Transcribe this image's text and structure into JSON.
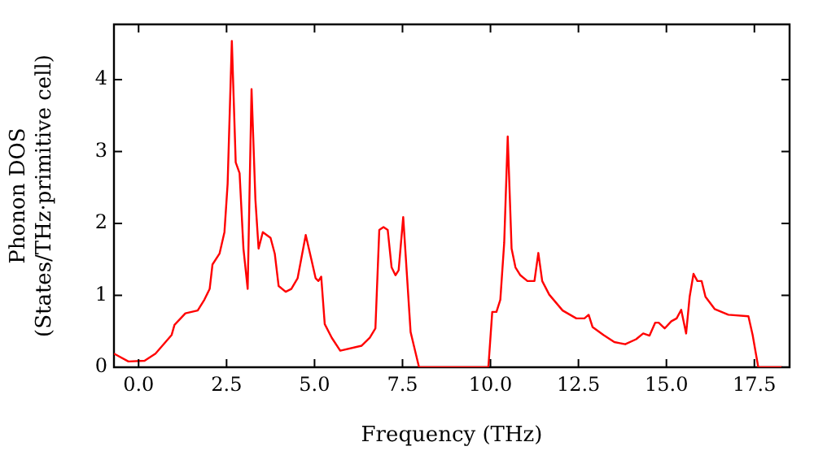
{
  "chart_data": {
    "type": "line",
    "xlabel": "Frequency (THz)",
    "ylabel": "Phonon DOS\n(States/THz·primitive cell)",
    "xlim": [
      -0.7,
      18.5
    ],
    "ylim": [
      0,
      4.77
    ],
    "xticks": [
      {
        "value": 0,
        "label": "0.0"
      },
      {
        "value": 2.5,
        "label": "2.5"
      },
      {
        "value": 5,
        "label": "5.0"
      },
      {
        "value": 7.5,
        "label": "7.5"
      },
      {
        "value": 10,
        "label": "10.0"
      },
      {
        "value": 12.5,
        "label": "12.5"
      },
      {
        "value": 15,
        "label": "15.0"
      },
      {
        "value": 17.5,
        "label": "17.5"
      }
    ],
    "yticks": [
      0,
      1,
      2,
      3,
      4
    ],
    "grid": false,
    "legend": false,
    "marker": "none",
    "line_style": "solid",
    "series": [
      {
        "color": "#ff0000",
        "x": [
          -0.7,
          -0.29,
          0.17,
          0.48,
          0.94,
          1.02,
          1.33,
          1.68,
          1.87,
          2.02,
          2.1,
          2.3,
          2.44,
          2.53,
          2.65,
          2.76,
          2.87,
          2.98,
          3.1,
          3.21,
          3.32,
          3.41,
          3.53,
          3.75,
          3.87,
          3.98,
          4.18,
          4.34,
          4.52,
          4.75,
          4.91,
          5.03,
          5.11,
          5.19,
          5.29,
          5.49,
          5.73,
          6.34,
          6.57,
          6.73,
          6.84,
          6.96,
          7.08,
          7.19,
          7.3,
          7.39,
          7.52,
          7.73,
          7.97,
          9.94,
          10.05,
          10.17,
          10.28,
          10.39,
          10.49,
          10.6,
          10.71,
          10.85,
          11.05,
          11.25,
          11.36,
          11.47,
          11.67,
          12.05,
          12.44,
          12.67,
          12.79,
          12.9,
          13.21,
          13.52,
          13.83,
          14.14,
          14.34,
          14.52,
          14.68,
          14.78,
          14.95,
          15.14,
          15.29,
          15.42,
          15.56,
          15.66,
          15.77,
          15.88,
          16.0,
          16.11,
          16.37,
          16.76,
          17.33,
          17.45,
          17.61,
          18.3
        ],
        "values": [
          0.19,
          0.08,
          0.09,
          0.19,
          0.45,
          0.59,
          0.75,
          0.79,
          0.94,
          1.09,
          1.43,
          1.58,
          1.88,
          2.55,
          4.54,
          2.85,
          2.7,
          1.65,
          1.09,
          3.87,
          2.33,
          1.65,
          1.88,
          1.8,
          1.58,
          1.13,
          1.05,
          1.09,
          1.24,
          1.84,
          1.5,
          1.24,
          1.2,
          1.26,
          0.6,
          0.41,
          0.23,
          0.3,
          0.41,
          0.54,
          1.91,
          1.95,
          1.91,
          1.39,
          1.28,
          1.35,
          2.09,
          0.49,
          0,
          0,
          0.77,
          0.77,
          0.94,
          1.73,
          3.21,
          1.65,
          1.39,
          1.28,
          1.2,
          1.2,
          1.59,
          1.2,
          1.01,
          0.79,
          0.68,
          0.68,
          0.73,
          0.56,
          0.45,
          0.35,
          0.32,
          0.39,
          0.47,
          0.44,
          0.62,
          0.62,
          0.54,
          0.64,
          0.68,
          0.8,
          0.47,
          0.98,
          1.3,
          1.2,
          1.2,
          0.98,
          0.81,
          0.73,
          0.71,
          0.45,
          0,
          0
        ]
      }
    ]
  }
}
